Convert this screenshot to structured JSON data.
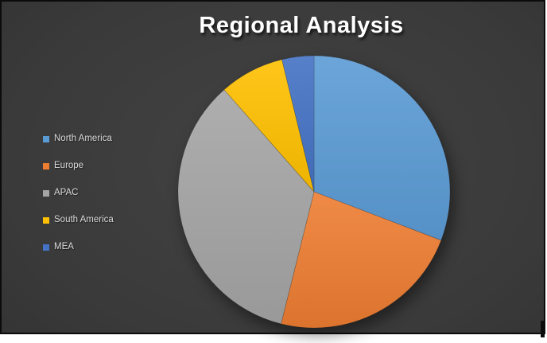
{
  "chart": {
    "title": "Regional Analysis"
  },
  "chart_data": {
    "type": "pie",
    "title": "Regional Analysis",
    "categories": [
      "North America",
      "Europe",
      "APAC",
      "South America",
      "MEA"
    ],
    "values": [
      30.8,
      23.1,
      34.6,
      7.7,
      3.8
    ],
    "value_unit": "percent",
    "colors": [
      "#5B9BD5",
      "#ED7D31",
      "#A5A5A5",
      "#FFC000",
      "#4472C4"
    ],
    "start_angle_deg": 0,
    "direction": "clockwise",
    "legend_position": "left",
    "data_labels": "none"
  },
  "legend": {
    "items": [
      {
        "label": "North America",
        "color": "#5B9BD5"
      },
      {
        "label": "Europe",
        "color": "#ED7D31"
      },
      {
        "label": "APAC",
        "color": "#A5A5A5"
      },
      {
        "label": "South America",
        "color": "#FFC000"
      },
      {
        "label": "MEA",
        "color": "#4472C4"
      }
    ]
  },
  "theme": {
    "background_center": "#434343",
    "background_edge": "#222222",
    "frame_border": "#0B0B0B",
    "title_color": "#FFFFFF",
    "legend_text_color": "#D9D9D9",
    "canvas_margin_color": "#FFFFFF"
  }
}
